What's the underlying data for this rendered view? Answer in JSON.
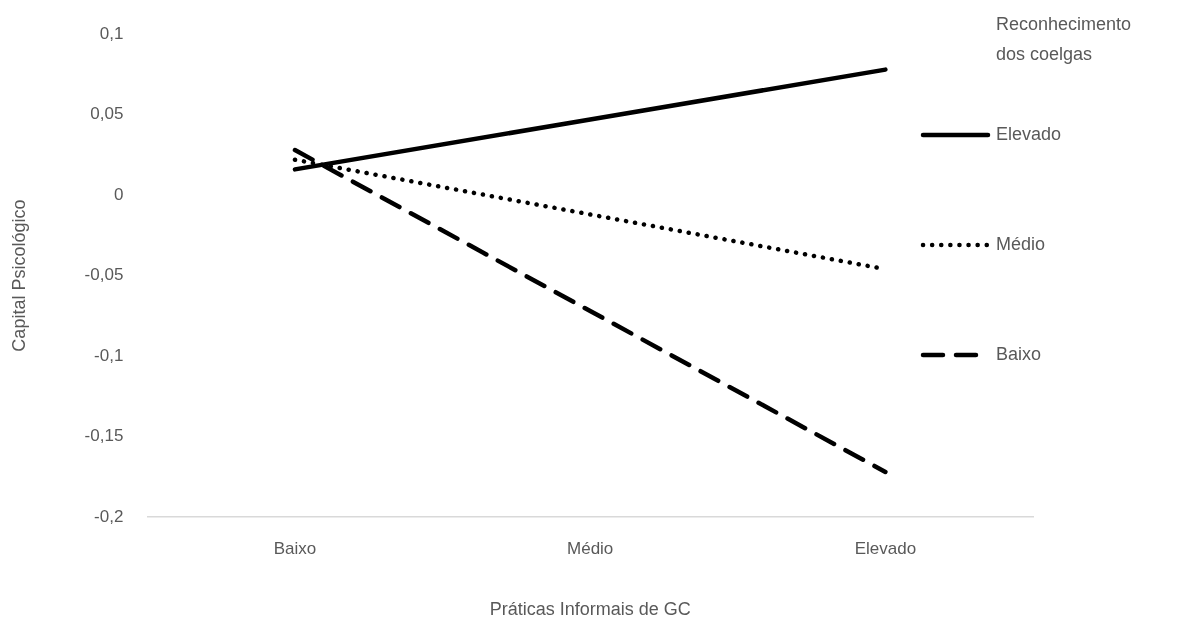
{
  "chart_data": {
    "type": "line",
    "categories": [
      "Baixo",
      "Médio",
      "Elevado"
    ],
    "xlabel": "Práticas Informais de GC",
    "ylabel": "Capital Psicológico",
    "legend_title": "Reconhecimento dos coelgas",
    "series": [
      {
        "name": "Elevado",
        "color": "#000000",
        "line_style": "solid",
        "values": [
          0.016,
          0.047,
          0.078
        ]
      },
      {
        "name": "Médio",
        "color": "#000000",
        "line_style": "dotted",
        "values": [
          0.022,
          -0.012,
          -0.046
        ]
      },
      {
        "name": "Baixo",
        "color": "#000000",
        "line_style": "dashed",
        "values": [
          0.028,
          -0.072,
          -0.172
        ]
      }
    ],
    "ylim": [
      -0.2,
      0.1
    ],
    "yticks": [
      {
        "value": -0.2,
        "label": "-0,2"
      },
      {
        "value": -0.15,
        "label": "-0,15"
      },
      {
        "value": -0.1,
        "label": "-0,1"
      },
      {
        "value": -0.05,
        "label": "-0,05"
      },
      0,
      {
        "value": 0.05,
        "label": "0,05"
      },
      {
        "value": 0.1,
        "label": "0,1"
      }
    ],
    "grid": false,
    "legend": "right",
    "marker": "none"
  }
}
